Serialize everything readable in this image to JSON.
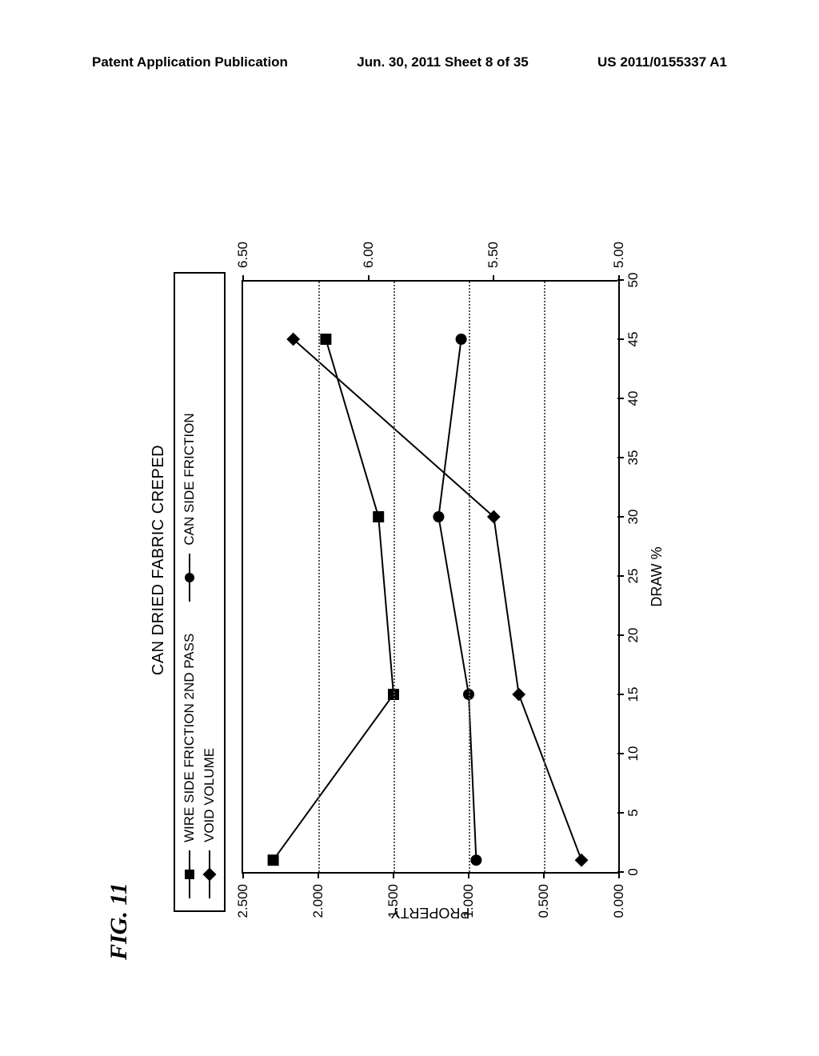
{
  "header": {
    "left": "Patent Application Publication",
    "center": "Jun. 30, 2011  Sheet 8 of 35",
    "right": "US 2011/0155337 A1"
  },
  "figure_label": "FIG. 11",
  "chart": {
    "title": "CAN DRIED FABRIC CREPED",
    "x_axis": {
      "label": "DRAW %",
      "min": 0,
      "max": 50,
      "ticks": [
        0,
        5,
        10,
        15,
        20,
        25,
        30,
        35,
        40,
        45,
        50
      ]
    },
    "y_axis_left": {
      "label": "PROPERTY",
      "min": 0,
      "max": 2.5,
      "ticks": [
        0.0,
        0.5,
        1.0,
        1.5,
        2.0,
        2.5
      ],
      "tick_labels": [
        "0.000",
        "0.500",
        "1.000",
        "1.500",
        "2.000",
        "2.500"
      ]
    },
    "y_axis_right": {
      "min": 5.0,
      "max": 6.5,
      "ticks": [
        5.0,
        5.5,
        6.0,
        6.5
      ],
      "tick_labels": [
        "5.00",
        "5.50",
        "6.00",
        "6.50"
      ]
    },
    "gridlines_y": [
      0.5,
      1.0,
      1.5,
      2.0
    ],
    "series": [
      {
        "name": "WIRE SIDE FRICTION 2ND PASS",
        "marker": "square",
        "axis": "left",
        "data": [
          {
            "x": 1,
            "y": 2.3
          },
          {
            "x": 15,
            "y": 1.5
          },
          {
            "x": 30,
            "y": 1.6
          },
          {
            "x": 45,
            "y": 1.95
          }
        ]
      },
      {
        "name": "CAN SIDE FRICTION",
        "marker": "circle",
        "axis": "left",
        "data": [
          {
            "x": 1,
            "y": 0.95
          },
          {
            "x": 15,
            "y": 1.0
          },
          {
            "x": 30,
            "y": 1.2
          },
          {
            "x": 45,
            "y": 1.05
          }
        ]
      },
      {
        "name": "VOID VOLUME",
        "marker": "diamond",
        "axis": "right",
        "data": [
          {
            "x": 1,
            "y": 5.15
          },
          {
            "x": 15,
            "y": 5.4
          },
          {
            "x": 30,
            "y": 5.5
          },
          {
            "x": 45,
            "y": 6.3
          }
        ]
      }
    ],
    "legend_order": [
      0,
      1,
      2
    ],
    "colors": {
      "line": "#000000",
      "marker": "#000000",
      "grid": "#555555",
      "bg": "#ffffff"
    },
    "line_width": 2,
    "marker_size": 7
  }
}
